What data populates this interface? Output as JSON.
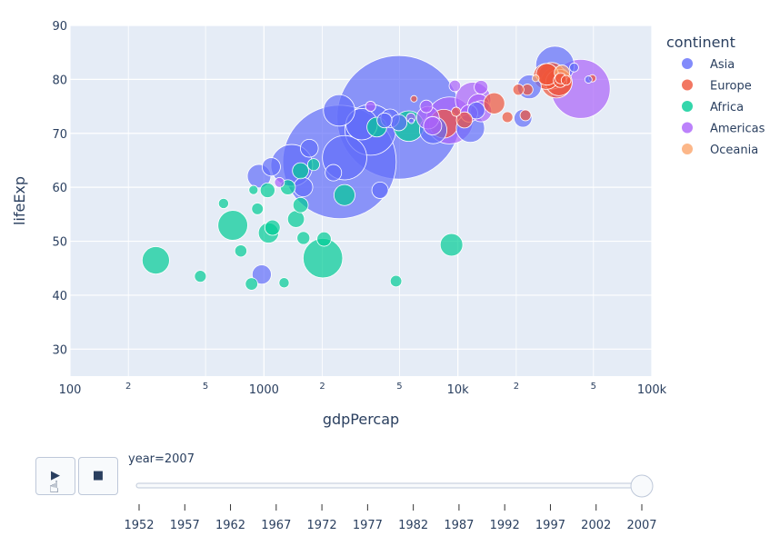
{
  "chart_data": {
    "type": "scatter",
    "subtype": "bubble",
    "xlabel": "gdpPercap",
    "ylabel": "lifeExp",
    "x_scale": "log",
    "xlim": [
      100,
      100000
    ],
    "ylim": [
      25,
      90
    ],
    "x_ticks": [
      {
        "value": 100,
        "label": "100",
        "major": true
      },
      {
        "value": 200,
        "label": "2",
        "major": false
      },
      {
        "value": 500,
        "label": "5",
        "major": false
      },
      {
        "value": 1000,
        "label": "1000",
        "major": true
      },
      {
        "value": 2000,
        "label": "2",
        "major": false
      },
      {
        "value": 5000,
        "label": "5",
        "major": false
      },
      {
        "value": 10000,
        "label": "10k",
        "major": true
      },
      {
        "value": 20000,
        "label": "2",
        "major": false
      },
      {
        "value": 50000,
        "label": "5",
        "major": false
      },
      {
        "value": 100000,
        "label": "100k",
        "major": true
      }
    ],
    "y_ticks": [
      30,
      40,
      50,
      60,
      70,
      80,
      90
    ],
    "grid": true,
    "background": "#e5ecf6",
    "legend_title": "continent",
    "legend_position": "right",
    "series": [
      {
        "name": "Asia",
        "color": "#636efa",
        "points": [
          {
            "x": 4960,
            "y": 72.96,
            "size": 1318.7
          },
          {
            "x": 2452,
            "y": 64.7,
            "size": 1110.4
          },
          {
            "x": 3541,
            "y": 70.65,
            "size": 223.5
          },
          {
            "x": 2605,
            "y": 65.48,
            "size": 169.3
          },
          {
            "x": 1391,
            "y": 64.06,
            "size": 150.4
          },
          {
            "x": 31656,
            "y": 82.6,
            "size": 127.5
          },
          {
            "x": 3190,
            "y": 71.69,
            "size": 85.3
          },
          {
            "x": 2442,
            "y": 74.25,
            "size": 85.3
          },
          {
            "x": 11606,
            "y": 70.96,
            "size": 69.5
          },
          {
            "x": 7458,
            "y": 70.62,
            "size": 65.1
          },
          {
            "x": 944,
            "y": 62.07,
            "size": 47.8
          },
          {
            "x": 1091,
            "y": 63.79,
            "size": 28.9
          },
          {
            "x": 23348,
            "y": 78.62,
            "size": 49.0
          },
          {
            "x": 1593,
            "y": 60.02,
            "size": 31.9
          },
          {
            "x": 12452,
            "y": 74.24,
            "size": 24.8
          },
          {
            "x": 4471,
            "y": 72.78,
            "size": 30.0
          },
          {
            "x": 974,
            "y": 43.83,
            "size": 31.9
          },
          {
            "x": 2281,
            "y": 62.7,
            "size": 23.3
          },
          {
            "x": 4185,
            "y": 72.4,
            "size": 19.3
          },
          {
            "x": 4959,
            "y": 71.99,
            "size": 22.9
          },
          {
            "x": 1714,
            "y": 67.23,
            "size": 27.5
          },
          {
            "x": 3970,
            "y": 59.45,
            "size": 23.3
          },
          {
            "x": 21655,
            "y": 72.8,
            "size": 27.6
          },
          {
            "x": 5758,
            "y": 72.3,
            "size": 2.5
          },
          {
            "x": 39725,
            "y": 82.21,
            "size": 6.98
          },
          {
            "x": 47143,
            "y": 79.97,
            "size": 4.55
          }
        ]
      },
      {
        "name": "Europe",
        "color": "#ef553b",
        "points": [
          {
            "x": 32170,
            "y": 79.41,
            "size": 82.4
          },
          {
            "x": 30470,
            "y": 80.66,
            "size": 61.1
          },
          {
            "x": 33203,
            "y": 79.43,
            "size": 60.8
          },
          {
            "x": 28570,
            "y": 80.55,
            "size": 58.1
          },
          {
            "x": 8458,
            "y": 71.78,
            "size": 71.2
          },
          {
            "x": 28821,
            "y": 80.94,
            "size": 40.4
          },
          {
            "x": 15390,
            "y": 75.56,
            "size": 38.5
          },
          {
            "x": 10808,
            "y": 72.48,
            "size": 22.3
          },
          {
            "x": 33693,
            "y": 79.76,
            "size": 15.9
          },
          {
            "x": 22833,
            "y": 78.1,
            "size": 10.6
          },
          {
            "x": 20510,
            "y": 78.1,
            "size": 10.6
          },
          {
            "x": 33860,
            "y": 80.2,
            "size": 10.4
          },
          {
            "x": 36126,
            "y": 79.83,
            "size": 8.2
          },
          {
            "x": 22316,
            "y": 73.34,
            "size": 10.2
          },
          {
            "x": 18009,
            "y": 73.0,
            "size": 10.2
          },
          {
            "x": 49357,
            "y": 80.2,
            "size": 4.6
          },
          {
            "x": 9787,
            "y": 74.0,
            "size": 7.3
          },
          {
            "x": 5937,
            "y": 76.4,
            "size": 3.6
          }
        ]
      },
      {
        "name": "Africa",
        "color": "#00cc96",
        "points": [
          {
            "x": 2014,
            "y": 46.86,
            "size": 135.0
          },
          {
            "x": 5581,
            "y": 71.34,
            "size": 80.3
          },
          {
            "x": 277,
            "y": 46.46,
            "size": 64.6
          },
          {
            "x": 691,
            "y": 52.95,
            "size": 76.5
          },
          {
            "x": 9270,
            "y": 49.34,
            "size": 43.9
          },
          {
            "x": 3820,
            "y": 71.16,
            "size": 33.8
          },
          {
            "x": 2602,
            "y": 58.56,
            "size": 38.0
          },
          {
            "x": 1056,
            "y": 51.54,
            "size": 35.6
          },
          {
            "x": 1463,
            "y": 54.11,
            "size": 24.5
          },
          {
            "x": 1107,
            "y": 52.52,
            "size": 20.4
          },
          {
            "x": 1328,
            "y": 60.0,
            "size": 19.5
          },
          {
            "x": 1544,
            "y": 63.06,
            "size": 22.5
          },
          {
            "x": 1044,
            "y": 59.44,
            "size": 18.7
          },
          {
            "x": 2042,
            "y": 50.4,
            "size": 17.7
          },
          {
            "x": 760,
            "y": 48.2,
            "size": 12.6
          },
          {
            "x": 863,
            "y": 42.08,
            "size": 13.3
          },
          {
            "x": 1545,
            "y": 56.7,
            "size": 20.0
          },
          {
            "x": 4797,
            "y": 42.6,
            "size": 11.4
          },
          {
            "x": 1598,
            "y": 50.6,
            "size": 14.3
          },
          {
            "x": 1803,
            "y": 64.2,
            "size": 12.3
          },
          {
            "x": 926,
            "y": 56.0,
            "size": 11.7
          },
          {
            "x": 883,
            "y": 59.5,
            "size": 7.3
          },
          {
            "x": 619,
            "y": 57.0,
            "size": 9.0
          },
          {
            "x": 470,
            "y": 43.5,
            "size": 12.0
          },
          {
            "x": 1270,
            "y": 42.3,
            "size": 9.1
          }
        ]
      },
      {
        "name": "Americas",
        "color": "#ab63fa",
        "points": [
          {
            "x": 42952,
            "y": 78.24,
            "size": 301.1
          },
          {
            "x": 9066,
            "y": 72.39,
            "size": 190.0
          },
          {
            "x": 11978,
            "y": 76.2,
            "size": 108.7
          },
          {
            "x": 12779,
            "y": 75.3,
            "size": 40.3
          },
          {
            "x": 7007,
            "y": 72.9,
            "size": 44.2
          },
          {
            "x": 13172,
            "y": 74.1,
            "size": 38.8
          },
          {
            "x": 7409,
            "y": 71.4,
            "size": 28.7
          },
          {
            "x": 11416,
            "y": 73.7,
            "size": 26.1
          },
          {
            "x": 13171,
            "y": 78.55,
            "size": 16.3
          },
          {
            "x": 6873,
            "y": 74.99,
            "size": 13.8
          },
          {
            "x": 5728,
            "y": 72.9,
            "size": 7.5
          },
          {
            "x": 3548,
            "y": 75.0,
            "size": 9.1
          },
          {
            "x": 9645,
            "y": 78.8,
            "size": 11.4
          },
          {
            "x": 1202,
            "y": 60.9,
            "size": 8.5
          }
        ]
      },
      {
        "name": "Oceania",
        "color": "#fba56c",
        "points": [
          {
            "x": 34435,
            "y": 81.24,
            "size": 20.4
          },
          {
            "x": 25185,
            "y": 80.2,
            "size": 4.1
          }
        ]
      }
    ],
    "slider": {
      "label": "year=2007",
      "ticks": [
        "1952",
        "1957",
        "1962",
        "1967",
        "1972",
        "1977",
        "1982",
        "1987",
        "1992",
        "1997",
        "2002",
        "2007"
      ],
      "current": "2007"
    }
  },
  "controls": {
    "play_icon": "▶",
    "stop_icon": "■"
  }
}
